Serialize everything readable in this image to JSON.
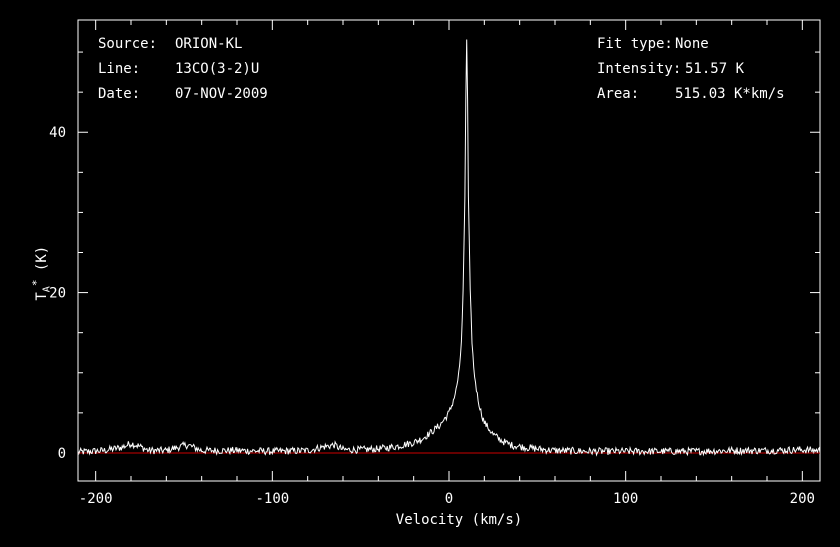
{
  "info": {
    "source_label": "Source:",
    "source_value": "ORION-KL",
    "line_label": "Line:",
    "line_value": "13CO(3-2)U",
    "date_label": "Date:",
    "date_value": "07-NOV-2009",
    "fit_label": "Fit type:",
    "fit_value": "None",
    "intensity_label": "Intensity:",
    "intensity_value": "51.57 K",
    "area_label": "Area:",
    "area_value": "515.03 K*km/s"
  },
  "colors": {
    "background": "#000000",
    "axes": "#ffffff",
    "spectrum": "#ffffff",
    "baseline": "#cc0000"
  },
  "chart_data": {
    "type": "line",
    "xlabel": "Velocity (km/s)",
    "ylabel_main": "T",
    "ylabel_sub": "A",
    "ylabel_sup": "*",
    "ylabel_unit": " (K)",
    "xlim": [
      -210,
      210
    ],
    "ylim": [
      -3.5,
      54
    ],
    "xticks": [
      -200,
      -100,
      0,
      100,
      200
    ],
    "xtick_labels": [
      "-200",
      "-100",
      "0",
      "100",
      "200"
    ],
    "yticks": [
      0,
      20,
      40
    ],
    "ytick_labels": [
      "0",
      "20",
      "40"
    ],
    "grid": false,
    "baseline_y": 0,
    "series": [
      {
        "x": [
          -210,
          -195,
          -185,
          -180,
          -176,
          -170,
          -160,
          -152,
          -148,
          -140,
          -120,
          -100,
          -80,
          -70,
          -65,
          -60,
          -50,
          -40,
          -30,
          -20,
          -15,
          -10,
          -5,
          0,
          2,
          4,
          6,
          7,
          8,
          9,
          9.5,
          10,
          10.5,
          11,
          12,
          13,
          14,
          16,
          18,
          20,
          25,
          30,
          35,
          40,
          50,
          60,
          80,
          100,
          120,
          140,
          160,
          180,
          200,
          210
        ],
        "y": [
          0.1,
          0.3,
          0.7,
          1.2,
          0.9,
          0.3,
          0.3,
          0.8,
          1.0,
          0.3,
          0.3,
          0.2,
          0.3,
          0.8,
          1.0,
          0.4,
          0.4,
          0.5,
          0.8,
          1.3,
          1.8,
          2.6,
          3.5,
          5.0,
          6.2,
          7.8,
          10.5,
          14,
          20,
          32,
          44,
          51.57,
          44,
          32,
          20,
          14,
          10.5,
          7.2,
          5.2,
          3.8,
          2.3,
          1.5,
          1.0,
          0.8,
          0.5,
          0.3,
          0.2,
          0.2,
          0.2,
          0.2,
          0.3,
          0.3,
          0.4,
          0.3
        ]
      }
    ]
  }
}
